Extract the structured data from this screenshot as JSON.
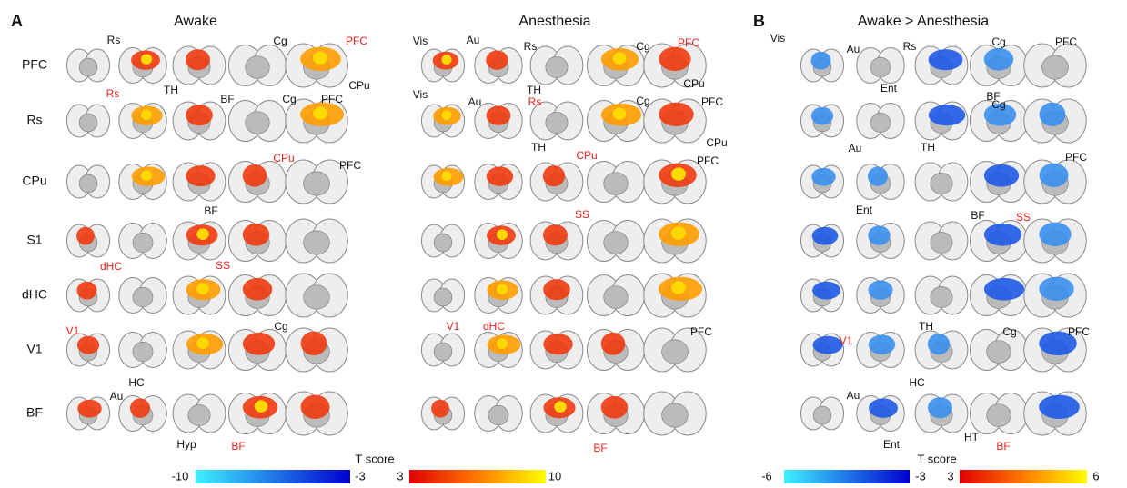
{
  "figure": {
    "panels": [
      {
        "label": "A",
        "conditions": [
          "Awake",
          "Anesthesia"
        ]
      },
      {
        "label": "B",
        "conditions": [
          "Awake > Anesthesia"
        ]
      }
    ],
    "row_labels": [
      "PFC",
      "Rs",
      "CPu",
      "S1",
      "dHC",
      "V1",
      "BF"
    ],
    "annotations": [
      "Rs",
      "TH",
      "Cg",
      "PFC",
      "CPu",
      "BF",
      "Rs",
      "Cg",
      "PFC",
      "CPu",
      "PFC",
      "BF",
      "SS",
      "dHC",
      "V1",
      "Cg",
      "HC",
      "Au",
      "Hyp",
      "BF",
      "Vis",
      "Au",
      "Rs",
      "Cg",
      "PFC",
      "CPu",
      "TH",
      "Vis",
      "Au",
      "Rs",
      "Cg",
      "PFC",
      "TH",
      "CPu",
      "CPu",
      "PFC",
      "SS",
      "V1",
      "dHC",
      "PFC",
      "BF",
      "Vis",
      "Au",
      "Rs",
      "Cg",
      "PFC",
      "Ent",
      "BF",
      "Cg",
      "Au",
      "TH",
      "PFC",
      "Ent",
      "BF",
      "SS",
      "TH",
      "V1",
      "Cg",
      "PFC",
      "HC",
      "Au",
      "Ent",
      "HT",
      "BF"
    ],
    "colorbars": [
      {
        "title": "T score",
        "ticks": [
          -10,
          -3,
          3,
          10
        ]
      },
      {
        "title": "T score",
        "ticks": [
          -6,
          -3,
          3,
          6
        ]
      }
    ]
  }
}
